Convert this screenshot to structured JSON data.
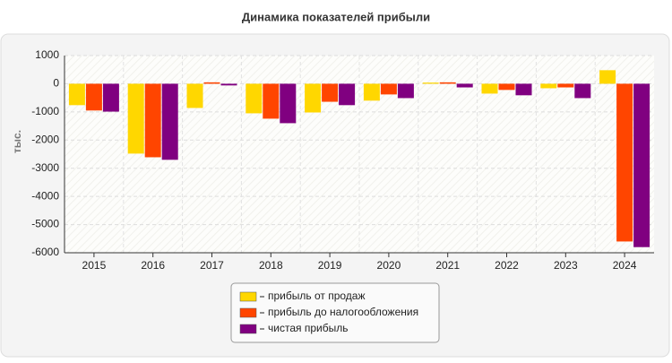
{
  "chart_data": {
    "type": "bar",
    "title": "Динамика показателей прибыли",
    "y_label": "тыс.",
    "categories": [
      "2015",
      "2016",
      "2017",
      "2018",
      "2019",
      "2020",
      "2021",
      "2022",
      "2023",
      "2024"
    ],
    "series": [
      {
        "name": "прибыль от продаж",
        "color": "#ffd700",
        "values": [
          -760,
          -2480,
          -860,
          -1050,
          -1020,
          -600,
          40,
          -350,
          -160,
          480
        ]
      },
      {
        "name": "прибыль до налогообложения",
        "color": "#ff4500",
        "values": [
          -950,
          -2610,
          50,
          -1240,
          -640,
          -380,
          50,
          -220,
          -130,
          -5600
        ]
      },
      {
        "name": "чистая прибыль",
        "color": "#800080",
        "values": [
          -990,
          -2700,
          -60,
          -1400,
          -760,
          -510,
          -130,
          -410,
          -510,
          -5800
        ]
      }
    ],
    "ylim": [
      -6000,
      1000
    ],
    "yticks": [
      -6000,
      -5000,
      -4000,
      -3000,
      -2000,
      -1000,
      0,
      1000
    ],
    "grid": true
  }
}
